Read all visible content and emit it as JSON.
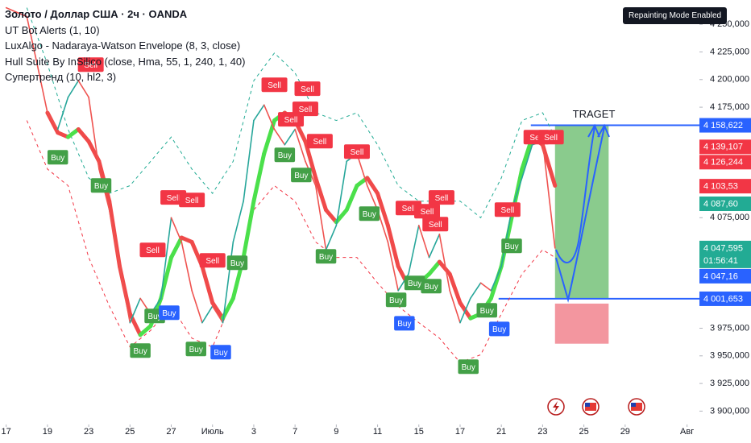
{
  "header": {
    "title": "Золото / Доллар США · 2ч · OANDA",
    "indicators": [
      "UT Bot Alerts (1, 10)",
      "LuxAlgo - Nadaraya-Watson Envelope (8, 3, close)",
      "Hull Suite By InSilico (close, Hma, 55, 1, 240, 1, 40)",
      "Супертренд (10, hl2, 3)"
    ],
    "badge": "Repainting Mode Enabled"
  },
  "chart_data": {
    "type": "line",
    "xlim": [
      -0.3,
      33.6
    ],
    "ylim": [
      3893,
      4272
    ],
    "xticks": [
      {
        "value": 0,
        "label": "17"
      },
      {
        "value": 2,
        "label": "19"
      },
      {
        "value": 4,
        "label": "23"
      },
      {
        "value": 6,
        "label": "25"
      },
      {
        "value": 8,
        "label": "27"
      },
      {
        "value": 10,
        "label": "Июль"
      },
      {
        "value": 12,
        "label": "3"
      },
      {
        "value": 14,
        "label": "7"
      },
      {
        "value": 16,
        "label": "9"
      },
      {
        "value": 18,
        "label": "11"
      },
      {
        "value": 20,
        "label": "15"
      },
      {
        "value": 22,
        "label": "17"
      },
      {
        "value": 24,
        "label": "21"
      },
      {
        "value": 26,
        "label": "23"
      },
      {
        "value": 28,
        "label": "25"
      },
      {
        "value": 30,
        "label": "29"
      },
      {
        "value": 33,
        "label": "Авг"
      }
    ],
    "yticks": [
      {
        "value": 4250,
        "label": "4 250,000"
      },
      {
        "value": 4225,
        "label": "4 225,000"
      },
      {
        "value": 4200,
        "label": "4 200,000"
      },
      {
        "value": 4175,
        "label": "4 175,000"
      },
      {
        "value": 4075,
        "label": "4 075,000"
      },
      {
        "value": 3975,
        "label": "3 975,000"
      },
      {
        "value": 3950,
        "label": "3 950,000"
      },
      {
        "value": 3925,
        "label": "3 925,000"
      },
      {
        "value": 3900,
        "label": "3 900,000"
      }
    ],
    "grid": false,
    "series": [
      {
        "x": [
          0,
          1,
          1.5,
          2,
          2.5,
          3,
          3.5,
          4,
          4.5,
          5,
          5.5,
          6,
          6.5,
          7,
          7.5,
          8,
          8.5,
          9,
          9.5,
          10,
          10.5,
          11,
          11.5,
          12,
          12.5,
          13,
          13.5,
          14,
          14.5,
          15,
          15.5,
          16,
          16.5,
          17,
          17.5,
          18,
          18.5,
          19,
          19.5,
          20,
          20.5,
          21,
          21.5,
          22,
          22.5,
          23,
          23.5,
          24,
          24.5,
          25,
          25.5,
          26,
          26.6
        ],
        "values": [
          4265,
          4257,
          4214,
          4170,
          4155,
          4184,
          4199,
          4184,
          4119,
          4082,
          4031,
          3980,
          4002,
          3988,
          4002,
          4075,
          4053,
          4009,
          3980,
          3995,
          3980,
          4053,
          4090,
          4163,
          4177,
          4155,
          4141,
          4155,
          4126,
          4104,
          4046,
          4068,
          4126,
          4133,
          4104,
          4082,
          4053,
          4009,
          4024,
          4068,
          4039,
          4060,
          4009,
          3980,
          4002,
          4016,
          4009,
          4031,
          4082,
          4111,
          4141,
          4144,
          4047.595
        ],
        "up_color": "#26a69a",
        "down_color": "#ef5350"
      },
      {
        "x": [
          1,
          2,
          3,
          4,
          5,
          6,
          7,
          8,
          9,
          10,
          11,
          12,
          13,
          14,
          15,
          16,
          17,
          18,
          19,
          20,
          21,
          22,
          23,
          24,
          25,
          26,
          26.6
        ],
        "values": [
          4265,
          4214,
          4155,
          4111,
          4097,
          4104,
          4126,
          4148,
          4119,
          4097,
          4126,
          4199,
          4224,
          4206,
          4170,
          4163,
          4170,
          4141,
          4104,
          4090,
          4090,
          4090,
          4075,
          4111,
          4163,
          4170,
          4148
        ],
        "lower": [
          4163,
          4119,
          4104,
          4039,
          3995,
          3958,
          3973,
          3995,
          3966,
          3958,
          4002,
          4082,
          4104,
          4090,
          4053,
          4039,
          4039,
          4016,
          3995,
          3980,
          3966,
          3944,
          3951,
          3988,
          4024,
          4046,
          4039
        ],
        "up_color": "#22ab94",
        "down_color": "#f23645"
      },
      {
        "x": [
          2,
          2.5,
          3,
          3.5,
          4,
          4.5,
          5,
          5.5,
          6,
          6.5,
          7,
          7.5,
          8,
          8.5,
          9,
          9.5,
          10,
          10.5,
          11,
          11.5,
          12,
          12.5,
          13,
          13.5,
          14,
          14.5,
          15,
          15.5,
          16,
          16.5,
          17,
          17.5,
          18,
          18.5,
          19,
          19.5,
          20,
          20.5,
          21,
          21.5,
          22,
          22.5,
          23,
          23.5,
          24,
          24.5,
          25,
          25.5,
          26,
          26.6
        ],
        "values": [
          4170,
          4152,
          4148,
          4155,
          4144,
          4126,
          4090,
          4031,
          3988,
          3969,
          3977,
          4002,
          4039,
          4057,
          4053,
          4031,
          3998,
          3984,
          4002,
          4039,
          4090,
          4133,
          4163,
          4170,
          4163,
          4144,
          4111,
          4082,
          4071,
          4082,
          4104,
          4111,
          4097,
          4068,
          4031,
          4013,
          4016,
          4024,
          4035,
          4024,
          3998,
          3984,
          3988,
          4002,
          4031,
          4075,
          4119,
          4148,
          4141,
          4104
        ],
        "up_color": "#4be04b",
        "down_color": "#f04a4a"
      }
    ],
    "signals": [
      {
        "text": "Sell",
        "x": 4.1,
        "price": 4213.5
      },
      {
        "text": "Sell",
        "x": 8.1,
        "price": 4093.3
      },
      {
        "text": "Sell",
        "x": 9.0,
        "price": 4091.1
      },
      {
        "text": "Sell",
        "x": 7.1,
        "price": 4045.9
      },
      {
        "text": "Sell",
        "x": 10.0,
        "price": 4036.4
      },
      {
        "text": "Sell",
        "x": 13.0,
        "price": 4195.3
      },
      {
        "text": "Sell",
        "x": 14.6,
        "price": 4191.7
      },
      {
        "text": "Sell",
        "x": 14.5,
        "price": 4173.5
      },
      {
        "text": "Sell",
        "x": 13.8,
        "price": 4164.0
      },
      {
        "text": "Sell",
        "x": 15.2,
        "price": 4144.3
      },
      {
        "text": "Sell",
        "x": 17.0,
        "price": 4134.8
      },
      {
        "text": "Sell",
        "x": 19.5,
        "price": 4083.8
      },
      {
        "text": "Sell",
        "x": 20.4,
        "price": 4080.9
      },
      {
        "text": "Sell",
        "x": 21.1,
        "price": 4093.3
      },
      {
        "text": "Sell",
        "x": 20.8,
        "price": 4069.2
      },
      {
        "text": "Sell",
        "x": 24.3,
        "price": 4082.3
      },
      {
        "text": "Sell",
        "x": 25.7,
        "price": 4147.9
      },
      {
        "text": "Sell",
        "x": 26.4,
        "price": 4147.9
      },
      {
        "text": "Buy",
        "x": 2.5,
        "price": 4129.7
      },
      {
        "text": "Buy",
        "x": 4.6,
        "price": 4104.2
      },
      {
        "text": "Buy",
        "x": 6.5,
        "price": 3954.8
      },
      {
        "text": "Buy",
        "x": 7.2,
        "price": 3986.1
      },
      {
        "text": "Buy",
        "x": 7.9,
        "price": 3989.0,
        "color": "#2962ff"
      },
      {
        "text": "Buy",
        "x": 9.2,
        "price": 3956.2
      },
      {
        "text": "Buy",
        "x": 10.4,
        "price": 3953.3,
        "color": "#2962ff"
      },
      {
        "text": "Buy",
        "x": 11.2,
        "price": 4034.2
      },
      {
        "text": "Buy",
        "x": 13.5,
        "price": 4131.9
      },
      {
        "text": "Buy",
        "x": 14.3,
        "price": 4113.7
      },
      {
        "text": "Buy",
        "x": 15.5,
        "price": 4040.0
      },
      {
        "text": "Buy",
        "x": 17.6,
        "price": 4078.7
      },
      {
        "text": "Buy",
        "x": 18.9,
        "price": 4000.7
      },
      {
        "text": "Buy",
        "x": 19.3,
        "price": 3979.5,
        "color": "#2962ff"
      },
      {
        "text": "Buy",
        "x": 19.8,
        "price": 4016.0
      },
      {
        "text": "Buy",
        "x": 20.6,
        "price": 4013.1
      },
      {
        "text": "Buy",
        "x": 22.4,
        "price": 3940.2
      },
      {
        "text": "Buy",
        "x": 23.3,
        "price": 3991.2
      },
      {
        "text": "Buy",
        "x": 23.9,
        "price": 3974.4,
        "color": "#2962ff"
      },
      {
        "text": "Buy",
        "x": 24.5,
        "price": 4049.5
      }
    ],
    "buy_color": "#43a047",
    "sell_color": "#f23645",
    "position": {
      "x": [
        26.6,
        29.2
      ],
      "entry": 4001.653,
      "target": 4158.622,
      "stop": 3961,
      "label": "TRAGET"
    },
    "price_badges": [
      {
        "value": 4158.622,
        "label": "4 158,622",
        "color": "#2962ff"
      },
      {
        "value": 4139.107,
        "label": "4 139,107",
        "color": "#f23645"
      },
      {
        "value": 4126.244,
        "label": "4 126,244",
        "color": "#f23645"
      },
      {
        "value": 4103.53,
        "label": "4 103,53",
        "color": "#f23645"
      },
      {
        "value": 4087.6,
        "label": "4 087,60",
        "color": "#22ab94"
      },
      {
        "value": 4047.595,
        "label": "4 047,595",
        "color": "#22ab94",
        "countdown": "01:56:41"
      },
      {
        "value": 4047.16,
        "label": "4 047,16",
        "color": "#2962ff"
      },
      {
        "value": 4001.653,
        "label": "4 001,653",
        "color": "#2962ff"
      }
    ]
  }
}
